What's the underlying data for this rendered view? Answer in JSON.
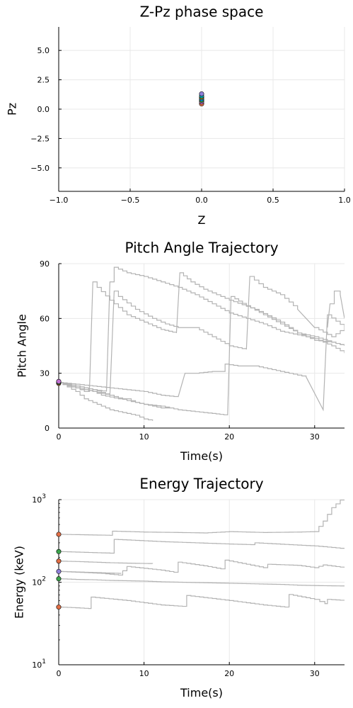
{
  "chart_data": [
    {
      "type": "scatter",
      "title": "Z-Pz phase space",
      "xlabel": "Z",
      "ylabel": "Pz",
      "xlim": [
        -1.0,
        1.0
      ],
      "ylim": [
        -7,
        7
      ],
      "xticks": [
        -1.0,
        -0.5,
        0.0,
        0.5,
        1.0
      ],
      "xticklabels": [
        "−1.0",
        "−0.5",
        "0.0",
        "0.5",
        "1.0"
      ],
      "yticks": [
        -5.0,
        -2.5,
        0.0,
        2.5,
        5.0
      ],
      "yticklabels": [
        "−5.0",
        "−2.5",
        "0.0",
        "2.5",
        "5.0"
      ],
      "grid": true,
      "points": [
        {
          "x": 0,
          "y": 0.45,
          "color": "#e26f46"
        },
        {
          "x": 0,
          "y": 0.62,
          "color": "#c271d2"
        },
        {
          "x": 0,
          "y": 0.75,
          "color": "#3da44d"
        },
        {
          "x": 0,
          "y": 0.88,
          "color": "#009af9"
        },
        {
          "x": 0,
          "y": 1.0,
          "color": "#ac8d18"
        },
        {
          "x": 0,
          "y": 1.12,
          "color": "#00a9ad"
        },
        {
          "x": 0,
          "y": 1.3,
          "color": "#8e7fd8"
        }
      ]
    },
    {
      "type": "line",
      "title": "Pitch Angle Trajectory",
      "xlabel": "Time(s)",
      "ylabel": "Pitch Angle",
      "xlim": [
        0,
        33.5
      ],
      "ylim": [
        0,
        90
      ],
      "xticks": [
        0,
        10,
        20,
        30
      ],
      "xticklabels": [
        "0",
        "10",
        "20",
        "30"
      ],
      "yticks": [
        0,
        30,
        60,
        90
      ],
      "yticklabels": [
        "0",
        "30",
        "60",
        "90"
      ],
      "grid": true,
      "series": [
        {
          "x": [
            0,
            1,
            2,
            3,
            4,
            5,
            6,
            7,
            8,
            9,
            10,
            11,
            12,
            13
          ],
          "y": [
            25,
            23,
            22,
            21,
            20,
            18,
            17,
            16,
            16,
            14,
            13,
            12,
            11,
            11
          ]
        },
        {
          "x": [
            0,
            2,
            3,
            3.6,
            4.0,
            4.5,
            6,
            8,
            10,
            12,
            13.8,
            14.2,
            15.5,
            17,
            20,
            23,
            26,
            28,
            30,
            32,
            33.5
          ],
          "y": [
            25,
            22,
            20,
            20,
            80,
            77,
            70,
            62,
            58,
            54,
            52,
            85,
            80,
            76,
            70,
            65,
            58,
            52,
            50,
            47,
            45
          ]
        },
        {
          "x": [
            0,
            2,
            4,
            5.6,
            6.0,
            6.5,
            7,
            8,
            10,
            12,
            14,
            16,
            18,
            20,
            22,
            24,
            26,
            28,
            30,
            32,
            33.5
          ],
          "y": [
            25,
            23,
            21,
            20,
            80,
            88,
            87,
            85,
            83,
            80,
            77,
            73,
            68,
            63,
            60,
            57,
            53,
            51,
            49,
            45,
            41
          ]
        },
        {
          "x": [
            0,
            2,
            4,
            6,
            6.5,
            7,
            9,
            11,
            12.5,
            14,
            16,
            18,
            20,
            22,
            22.4,
            24,
            26,
            28,
            30,
            32,
            33.5
          ],
          "y": [
            25,
            22,
            20,
            18,
            75,
            72,
            65,
            60,
            57,
            55,
            55,
            50,
            45,
            43,
            83,
            77,
            73,
            65,
            55,
            50,
            55
          ]
        },
        {
          "x": [
            0,
            2,
            3,
            4,
            5,
            6,
            7,
            8,
            9,
            10,
            11
          ],
          "y": [
            25,
            20,
            16,
            14,
            12,
            10,
            9,
            8,
            7,
            5,
            4
          ]
        },
        {
          "x": [
            0,
            2,
            4,
            6,
            8,
            10,
            12,
            14,
            14.8,
            16,
            18,
            19.2,
            19.5,
            21,
            23,
            25,
            27,
            29,
            31,
            31.5,
            33.5
          ],
          "y": [
            25,
            24,
            23,
            22,
            21,
            20,
            18,
            17,
            30,
            30,
            31,
            31,
            35,
            34,
            34,
            32,
            30,
            28,
            10,
            62,
            55
          ]
        },
        {
          "x": [
            0,
            2,
            4,
            6,
            8,
            10,
            12,
            14,
            16,
            18,
            19.8,
            20.2,
            22,
            24,
            26,
            28,
            30,
            32,
            33.5
          ],
          "y": [
            25,
            23,
            21,
            18,
            15,
            13,
            12,
            10,
            9,
            8,
            7,
            72,
            67,
            62,
            57,
            52,
            48,
            47,
            45
          ]
        },
        {
          "x": [
            31.5,
            31.8,
            32.3,
            33.0,
            33.5
          ],
          "y": [
            55,
            68,
            75,
            73,
            60
          ]
        }
      ],
      "markers": [
        {
          "x": 0,
          "y": 24.5,
          "color": "#e26f46"
        },
        {
          "x": 0,
          "y": 25.0,
          "color": "#3da44d"
        },
        {
          "x": 0,
          "y": 25.5,
          "color": "#c271d2"
        }
      ]
    },
    {
      "type": "line",
      "title": "Energy Trajectory",
      "xlabel": "Time(s)",
      "ylabel": "Energy (keV)",
      "xlim": [
        0,
        33.5
      ],
      "ylim": [
        10,
        1000
      ],
      "yscale": "log",
      "xticks": [
        0,
        10,
        20,
        30
      ],
      "xticklabels": [
        "0",
        "10",
        "20",
        "30"
      ],
      "yticks": [
        10,
        100,
        1000
      ],
      "yticklabels": [
        "10",
        "10",
        "10"
      ],
      "yticksup": [
        "1",
        "2",
        "3"
      ],
      "grid": true,
      "series": [
        {
          "x": [
            0,
            3,
            6,
            6.3,
            10,
            14,
            17,
            20,
            24,
            28,
            30,
            31,
            32,
            33.5
          ],
          "y": [
            380,
            375,
            370,
            415,
            405,
            400,
            395,
            410,
            400,
            405,
            410,
            550,
            800,
            1100
          ]
        },
        {
          "x": [
            0,
            3,
            6,
            6.5,
            8,
            12,
            16,
            20,
            22.5,
            23,
            27,
            30,
            33.5
          ],
          "y": [
            235,
            230,
            225,
            330,
            325,
            310,
            300,
            290,
            285,
            300,
            285,
            275,
            255
          ]
        },
        {
          "x": [
            0,
            2,
            4,
            6,
            8,
            11
          ],
          "y": [
            180,
            178,
            175,
            172,
            170,
            168
          ]
        },
        {
          "x": [
            0,
            3,
            5,
            7,
            7.3
          ],
          "y": [
            135,
            132,
            130,
            128,
            127
          ]
        },
        {
          "x": [
            0,
            5,
            7,
            8,
            12,
            13.5,
            14,
            17,
            19,
            19.5,
            22,
            24,
            24.5,
            28,
            30,
            31,
            33.5
          ],
          "y": [
            135,
            128,
            122,
            155,
            140,
            132,
            175,
            158,
            145,
            185,
            165,
            150,
            165,
            160,
            150,
            162,
            150
          ]
        },
        {
          "x": [
            0,
            2,
            4,
            6,
            8,
            10,
            12,
            14,
            16,
            18,
            20,
            22,
            24,
            26,
            28,
            30,
            33.5
          ],
          "y": [
            110,
            108,
            107,
            105,
            104,
            103,
            101,
            100,
            99,
            98,
            97,
            96,
            95,
            94,
            92,
            91,
            90
          ]
        },
        {
          "x": [
            0,
            2,
            3.5,
            3.8,
            8,
            12,
            14.5,
            15,
            20,
            24,
            26.5,
            27,
            30,
            31.2,
            31.5,
            33.5
          ],
          "y": [
            50,
            49,
            48,
            66,
            60,
            53,
            51,
            69,
            60,
            53,
            50,
            71,
            62,
            55,
            62,
            60
          ]
        }
      ],
      "markers": [
        {
          "x": 0,
          "y": 380,
          "color": "#e26f46"
        },
        {
          "x": 0,
          "y": 235,
          "color": "#3da44d"
        },
        {
          "x": 0,
          "y": 180,
          "color": "#e26f46"
        },
        {
          "x": 0,
          "y": 135,
          "color": "#8e7fd8"
        },
        {
          "x": 0,
          "y": 110,
          "color": "#3da44d"
        },
        {
          "x": 0,
          "y": 50,
          "color": "#e26f46"
        }
      ]
    }
  ]
}
